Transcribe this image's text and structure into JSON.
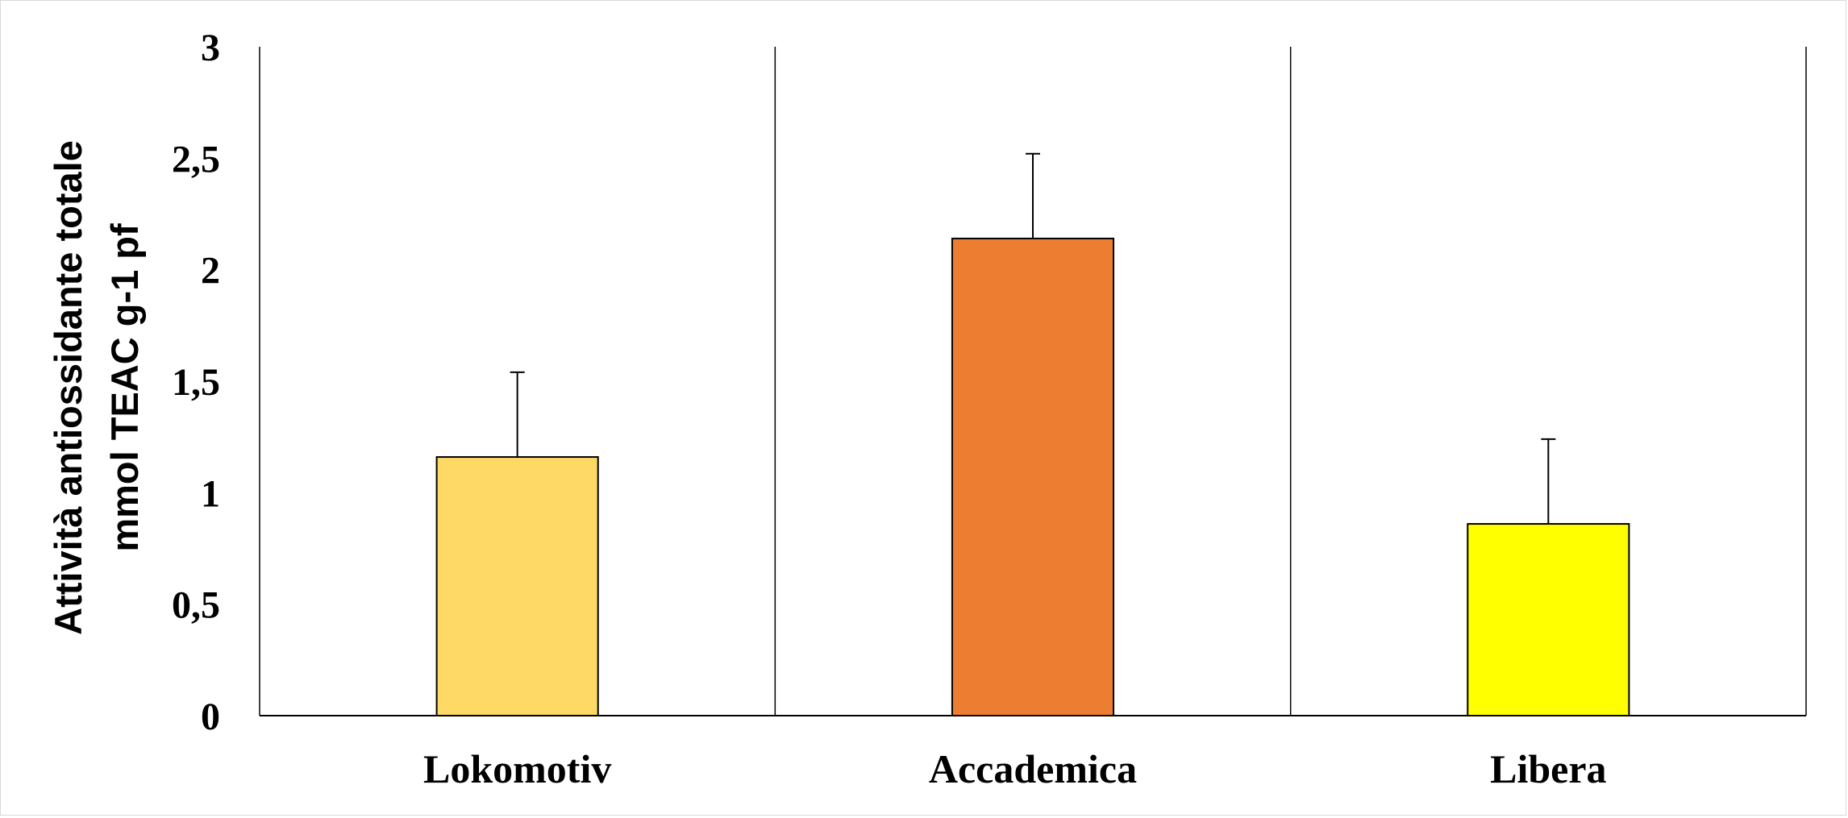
{
  "chart_data": {
    "type": "bar",
    "categories": [
      "Lokomotiv",
      "Accademica",
      "Libera"
    ],
    "values": [
      1.16,
      2.14,
      0.86
    ],
    "error_upper": [
      1.54,
      2.52,
      1.24
    ],
    "colors": [
      "#FFD966",
      "#ED7D31",
      "#FFFF00"
    ],
    "title": "",
    "xlabel": "",
    "ylabel_lines": [
      "Attività antiossidante totale",
      "mmol TEAC g-1 pf"
    ],
    "ylim": [
      0,
      3
    ],
    "yticks": [
      "0",
      "0,5",
      "1",
      "1,5",
      "2",
      "2,5",
      "3"
    ],
    "grid": false,
    "legend": "none",
    "category_separators": true
  }
}
